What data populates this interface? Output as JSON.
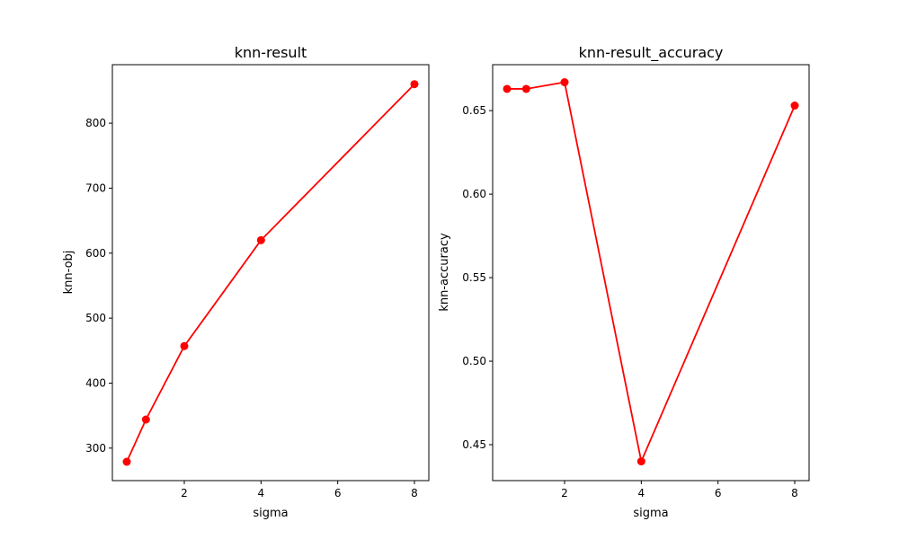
{
  "chart_data": [
    {
      "type": "line",
      "title": "knn-result",
      "xlabel": "sigma",
      "ylabel": "knn-obj",
      "xlim": [
        0.125,
        8.375
      ],
      "ylim": [
        250,
        890
      ],
      "xticks": [
        2,
        4,
        6,
        8
      ],
      "yticks": [
        300,
        400,
        500,
        600,
        700,
        800
      ],
      "color": "#ff0000",
      "grid": false,
      "series": [
        {
          "x": [
            0.5,
            1,
            2,
            4,
            8
          ],
          "values": [
            279,
            344,
            457,
            620,
            860
          ]
        }
      ]
    },
    {
      "type": "line",
      "title": "knn-result_accuracy",
      "xlabel": "sigma",
      "ylabel": "knn-accuracy",
      "xlim": [
        0.125,
        8.375
      ],
      "ylim": [
        0.4285,
        0.6775
      ],
      "xticks": [
        2,
        4,
        6,
        8
      ],
      "yticks": [
        0.45,
        0.5,
        0.55,
        0.6,
        0.65
      ],
      "color": "#ff0000",
      "grid": false,
      "series": [
        {
          "x": [
            0.5,
            1,
            2,
            4,
            8
          ],
          "values": [
            0.663,
            0.663,
            0.667,
            0.44,
            0.653
          ]
        }
      ]
    }
  ]
}
